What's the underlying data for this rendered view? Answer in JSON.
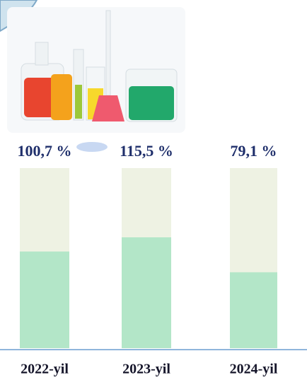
{
  "chart_data": {
    "type": "bar",
    "categories": [
      "2022-yil",
      "2023-yil",
      "2024-yil"
    ],
    "values": [
      100.7,
      115.5,
      79.1
    ],
    "value_labels": [
      "100,7 %",
      "115,5 %",
      "79,1 %"
    ],
    "color": "#b3e6c8"
  }
}
